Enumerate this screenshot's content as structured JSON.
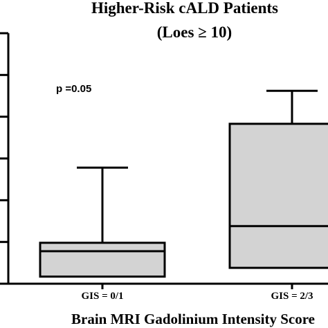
{
  "chart_data": {
    "type": "box",
    "title_lines": [
      "Higher-Risk cALD Patients",
      "(Loes ≥ 10)"
    ],
    "annotation": "p =0.05",
    "xlabel": "Brain MRI Gadolinium Intensity Score",
    "ylabel": "",
    "categories": [
      "GIS = 0/1",
      "GIS = 2/3"
    ],
    "y_tick_count": 6,
    "ylim": [
      0,
      6
    ],
    "boxes": [
      {
        "category": "GIS = 0/1",
        "whisker_low": 0.17,
        "q1": 0.17,
        "median": 0.78,
        "q3": 0.98,
        "whisker_high": 2.78
      },
      {
        "category": "GIS = 2/3",
        "whisker_low": 0.38,
        "q1": 0.38,
        "median": 1.38,
        "q3": 3.83,
        "whisker_high": 4.62
      }
    ],
    "colors": {
      "box_fill": "#d3d3d3",
      "stroke": "#000000",
      "background": "#ffffff"
    }
  }
}
